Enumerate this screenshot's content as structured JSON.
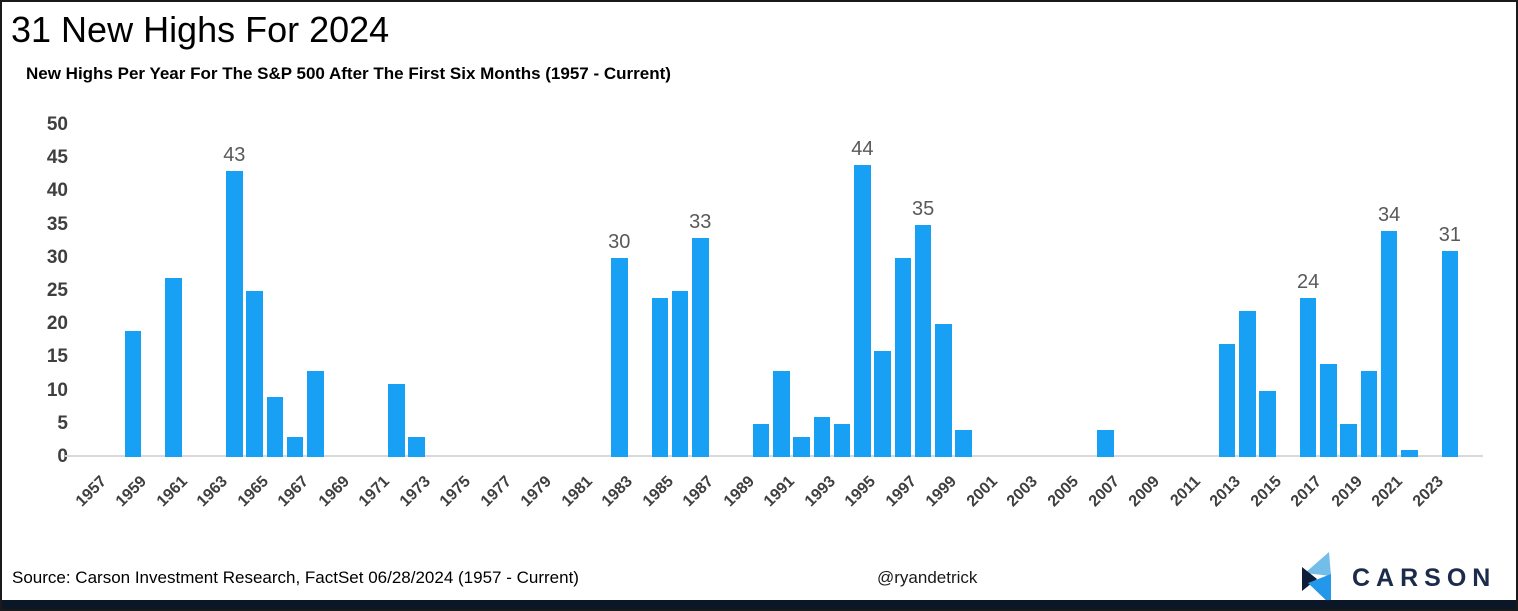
{
  "title": "31 New Highs For 2024",
  "subtitle": "New Highs Per Year For The S&P 500 After The First Six Months (1957 - Current)",
  "footer": {
    "source": "Source: Carson Investment Research, FactSet 06/28/2024 (1957 - Current)",
    "handle": "@ryandetrick",
    "brand": "CARSON"
  },
  "colors": {
    "bar": "#18a0f5",
    "bar_value_label": "#595959",
    "axis_label": "#3f3f3f",
    "baseline": "#d9d9d9",
    "bottom_bar": "#0b1627",
    "brand_navy": "#1c2b4a",
    "logo_light_blue": "#73bee9",
    "logo_mid_blue": "#2397ea",
    "logo_dark_navy": "#0f1e38"
  },
  "chart_data": {
    "type": "bar",
    "title": "31 New Highs For 2024",
    "subtitle": "New Highs Per Year For The S&P 500 After The First Six Months (1957 - Current)",
    "xlabel": "",
    "ylabel": "",
    "ylim": [
      0,
      50
    ],
    "grid": false,
    "legend": "none",
    "bar_color": "#18a0f5",
    "categories": [
      1957,
      1958,
      1959,
      1960,
      1961,
      1962,
      1963,
      1964,
      1965,
      1966,
      1967,
      1968,
      1969,
      1970,
      1971,
      1972,
      1973,
      1974,
      1975,
      1976,
      1977,
      1978,
      1979,
      1980,
      1981,
      1982,
      1983,
      1984,
      1985,
      1986,
      1987,
      1988,
      1989,
      1990,
      1991,
      1992,
      1993,
      1994,
      1995,
      1996,
      1997,
      1998,
      1999,
      2000,
      2001,
      2002,
      2003,
      2004,
      2005,
      2006,
      2007,
      2008,
      2009,
      2010,
      2011,
      2012,
      2013,
      2014,
      2015,
      2016,
      2017,
      2018,
      2019,
      2020,
      2021,
      2022,
      2023,
      2024
    ],
    "values": [
      0,
      0,
      19,
      0,
      27,
      0,
      0,
      43,
      25,
      9,
      3,
      13,
      0,
      0,
      0,
      11,
      3,
      0,
      0,
      0,
      0,
      0,
      0,
      0,
      0,
      0,
      30,
      0,
      24,
      25,
      33,
      0,
      0,
      5,
      13,
      3,
      6,
      5,
      44,
      16,
      30,
      35,
      20,
      4,
      0,
      0,
      0,
      0,
      0,
      0,
      4,
      0,
      0,
      0,
      0,
      0,
      17,
      22,
      10,
      0,
      24,
      14,
      5,
      13,
      34,
      1,
      0,
      31
    ],
    "bar_value_labels": [
      {
        "year": 1964,
        "text": "43"
      },
      {
        "year": 1983,
        "text": "30"
      },
      {
        "year": 1987,
        "text": "33"
      },
      {
        "year": 1995,
        "text": "44"
      },
      {
        "year": 1998,
        "text": "35"
      },
      {
        "year": 2017,
        "text": "24"
      },
      {
        "year": 2021,
        "text": "34"
      },
      {
        "year": 2024,
        "text": "31"
      }
    ],
    "x_tick_labels": [
      "1957",
      "1959",
      "1961",
      "1963",
      "1965",
      "1967",
      "1969",
      "1971",
      "1973",
      "1975",
      "1977",
      "1979",
      "1981",
      "1983",
      "1985",
      "1987",
      "1989",
      "1991",
      "1993",
      "1995",
      "1997",
      "1999",
      "2001",
      "2003",
      "2005",
      "2007",
      "2009",
      "2011",
      "2013",
      "2015",
      "2017",
      "2019",
      "2021",
      "2023"
    ],
    "y_tick_labels": [
      "0",
      "5",
      "10",
      "15",
      "20",
      "25",
      "30",
      "35",
      "40",
      "45",
      "50"
    ]
  }
}
